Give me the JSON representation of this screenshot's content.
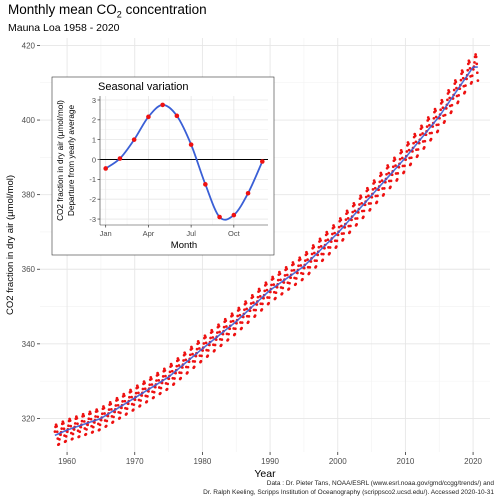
{
  "title": "Monthly mean CO",
  "title_sub": "2",
  "title_tail": " concentration",
  "subtitle": "Mauna Loa 1958 - 2020",
  "caption_line1": "Data : Dr. Pieter Tans, NOAA/ESRL (www.esrl.noaa.gov/gmd/ccgg/trends/) and",
  "caption_line2": "Dr. Ralph Keeling, Scripps Institution of Oceanography (scrippsco2.ucsd.edu/). Accessed  2020-10-31",
  "colors": {
    "points": "#ee1111",
    "trend": "#3a5fd6",
    "grid_major": "#e6e6e6",
    "grid_minor": "#f2f2f2",
    "text": "#4d4d4d"
  },
  "chart_data": [
    {
      "type": "scatter",
      "xlabel": "Year",
      "ylabel": "CO2 fraction in dry air (µmol/mol)",
      "xlim": [
        1956,
        2022.5
      ],
      "ylim": [
        311,
        422
      ],
      "x_ticks": [
        1960,
        1970,
        1980,
        1990,
        2000,
        2010,
        2020
      ],
      "y_ticks": [
        320,
        340,
        360,
        380,
        400,
        420
      ],
      "grid": true,
      "series": [
        {
          "trend_years": [
            1958,
            1960,
            1965,
            1970,
            1975,
            1980,
            1985,
            1990,
            1995,
            2000,
            2005,
            2010,
            2015,
            2020
          ],
          "trend_ppm": [
            315.3,
            316.9,
            320.0,
            325.5,
            331.1,
            338.7,
            346.0,
            354.4,
            360.8,
            369.7,
            379.8,
            389.9,
            401.0,
            414.2
          ],
          "seasonal_amplitude_ppm": [
            -0.5,
            0.1,
            1.0,
            2.2,
            2.7,
            2.2,
            0.7,
            -1.2,
            -2.9,
            -2.8,
            -1.6,
            -0.3
          ]
        }
      ]
    },
    {
      "type": "line",
      "title": "Seasonal variation",
      "xlabel": "Month",
      "ylabel_line1": "CO2 fraction in dry air (µmol/mol)",
      "ylabel_line2": "Departure from yearly average",
      "xlim": [
        0.6,
        12.4
      ],
      "ylim": [
        -3.3,
        3.2
      ],
      "x_tick_values": [
        1,
        4,
        7,
        10
      ],
      "x_tick_labels": [
        "Jan",
        "Apr",
        "Jul",
        "Oct"
      ],
      "y_ticks": [
        -3,
        -2,
        -1,
        0,
        1,
        2,
        3
      ],
      "grid": true,
      "series": [
        {
          "months": [
            1,
            2,
            3,
            4,
            5,
            6,
            7,
            8,
            9,
            10,
            11,
            12
          ],
          "values": [
            -0.45,
            0.05,
            1.0,
            2.15,
            2.75,
            2.2,
            0.75,
            -1.25,
            -2.9,
            -2.8,
            -1.7,
            -0.1
          ]
        }
      ]
    }
  ]
}
